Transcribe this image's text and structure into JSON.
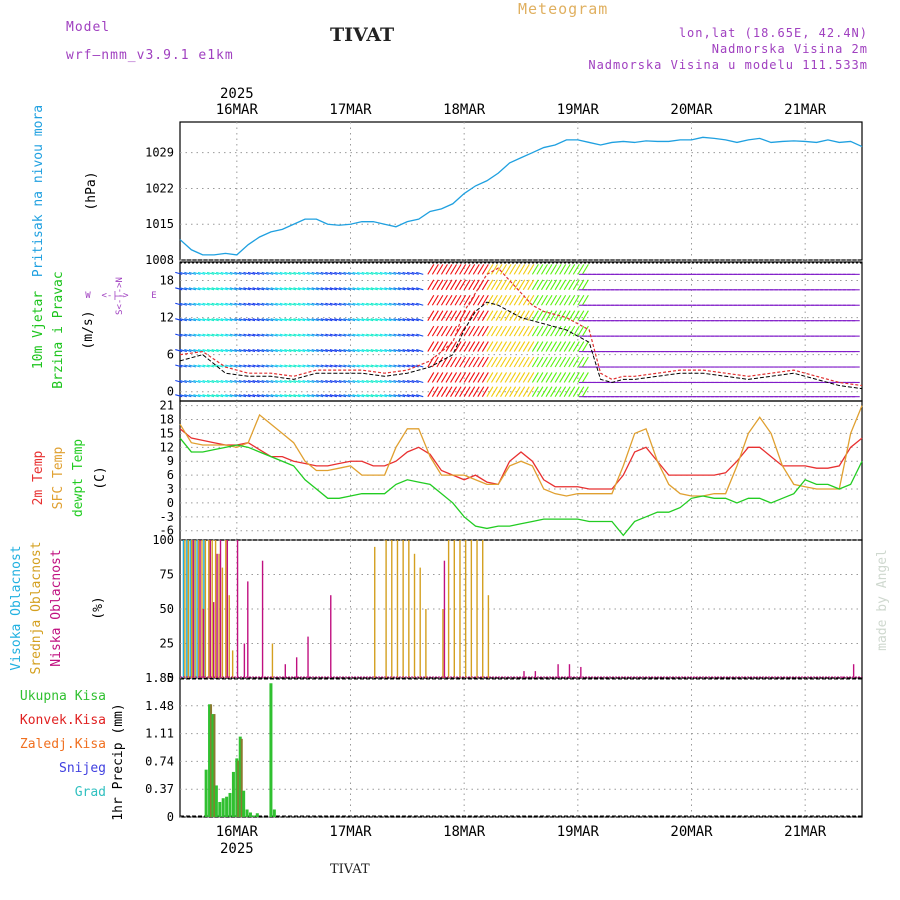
{
  "header": {
    "model_label": "Model",
    "model_name": "wrf—nmm_v3.9.1  e1km",
    "station": "TIVAT",
    "meteogram": "Meteogram",
    "lonlat": "lon,lat (18.65E, 42.4N)",
    "elevation": "Nadmorska Visina 2m",
    "model_elevation": "Nadmorska Visina u modelu 111.533m",
    "footer_station": "TIVAT",
    "credit": "made by Angel"
  },
  "colors": {
    "pressure": "#1fa0e0",
    "wind_label": "#1cc41c",
    "temp2m": "#e83030",
    "sfc_temp": "#e0a030",
    "dewpt": "#22cc22",
    "cloud_high": "#20b0e0",
    "cloud_mid": "#d4a020",
    "cloud_low": "#c01080",
    "precip_total": "#30c030",
    "precip_conv": "#e02020",
    "precip_frz": "#f07020",
    "snow": "#4040e0",
    "grad": "#30c0c0",
    "header_violet": "#a040c0",
    "header_gold": "#e0b060"
  },
  "chart_data": [
    {
      "type": "line",
      "id": "pressure",
      "ylabel": [
        "Pritisak na nivou mora",
        "(hPa)"
      ],
      "x_top_year": "2025",
      "x_ticks": [
        "16MAR",
        "17MAR",
        "18MAR",
        "19MAR",
        "20MAR",
        "21MAR"
      ],
      "yticks": [
        1008,
        1015,
        1022,
        1029
      ],
      "ylim": [
        1008,
        1035
      ],
      "xlim": [
        -0.5,
        5.5
      ],
      "grid": true,
      "x": [
        -0.5,
        -0.4,
        -0.3,
        -0.2,
        -0.1,
        0.0,
        0.1,
        0.2,
        0.3,
        0.4,
        0.5,
        0.6,
        0.7,
        0.8,
        0.9,
        1.0,
        1.1,
        1.2,
        1.3,
        1.4,
        1.5,
        1.6,
        1.7,
        1.8,
        1.9,
        2.0,
        2.1,
        2.2,
        2.3,
        2.4,
        2.5,
        2.6,
        2.7,
        2.8,
        2.9,
        3.0,
        3.1,
        3.2,
        3.3,
        3.4,
        3.5,
        3.6,
        3.7,
        3.8,
        3.9,
        4.0,
        4.1,
        4.2,
        4.3,
        4.4,
        4.5,
        4.6,
        4.7,
        4.8,
        4.9,
        5.0,
        5.1,
        5.2,
        5.3,
        5.4,
        5.5
      ],
      "values": [
        1012,
        1010,
        1009,
        1009,
        1009.3,
        1009,
        1011,
        1012.5,
        1013.5,
        1014,
        1015,
        1016,
        1016,
        1015,
        1014.8,
        1015,
        1015.5,
        1015.5,
        1015,
        1014.5,
        1015.5,
        1016,
        1017.5,
        1018,
        1019,
        1021,
        1022.5,
        1023.5,
        1025,
        1027,
        1028,
        1029,
        1030,
        1030.5,
        1031.5,
        1031.5,
        1031,
        1030.5,
        1031,
        1031.2,
        1031,
        1031.3,
        1031.2,
        1031.2,
        1031.5,
        1031.5,
        1032,
        1031.8,
        1031.5,
        1031,
        1031.5,
        1031.8,
        1031,
        1031.2,
        1031.3,
        1031.2,
        1031,
        1031.5,
        1031,
        1031.2,
        1030.2
      ]
    },
    {
      "type": "line",
      "id": "wind",
      "ylabel": [
        "10m Vjetar",
        "Brzina i Pravac",
        "(m/s)"
      ],
      "compass": [
        "W",
        "<-|->",
        "E",
        "S<-|->N"
      ],
      "yticks": [
        0,
        6,
        12,
        18
      ],
      "ylim": [
        -1.5,
        21
      ],
      "xlim": [
        -0.5,
        5.5
      ],
      "grid": true,
      "x": [
        -0.5,
        -0.3,
        -0.1,
        0.1,
        0.3,
        0.5,
        0.7,
        0.9,
        1.1,
        1.3,
        1.5,
        1.7,
        1.9,
        2.0,
        2.1,
        2.2,
        2.3,
        2.4,
        2.5,
        2.6,
        2.7,
        2.8,
        2.9,
        3.0,
        3.1,
        3.2,
        3.3,
        3.4,
        3.5,
        3.7,
        3.9,
        4.1,
        4.3,
        4.5,
        4.7,
        4.9,
        5.1,
        5.3,
        5.5
      ],
      "series": [
        {
          "name": "speed",
          "values": [
            5,
            6,
            3,
            2.5,
            2.5,
            2,
            3,
            3,
            3,
            2.5,
            3,
            4,
            6,
            10,
            13,
            14.5,
            14,
            13,
            12,
            11.5,
            11,
            10.5,
            10,
            9,
            8,
            2,
            1.5,
            2,
            2,
            2.5,
            3,
            3,
            2.5,
            2,
            2.5,
            3,
            2,
            1,
            0.5
          ]
        },
        {
          "name": "gust",
          "values": [
            6,
            6.5,
            4,
            3,
            3,
            2.5,
            3.5,
            3.5,
            3.5,
            3,
            3.5,
            5,
            8,
            13,
            16,
            19,
            20,
            18,
            16,
            14,
            13,
            12.5,
            12,
            11,
            10,
            3,
            2,
            2.5,
            2.5,
            3,
            3.5,
            3.5,
            3,
            2.5,
            3,
            3.5,
            2.5,
            1.5,
            1
          ]
        }
      ]
    },
    {
      "type": "line",
      "id": "temperature",
      "ylabel": [
        "2m Temp",
        "SFC Temp",
        "dewpt Temp",
        "(C)"
      ],
      "yticks": [
        -6,
        -3,
        0,
        3,
        6,
        9,
        12,
        15,
        18,
        21
      ],
      "ylim": [
        -8,
        22
      ],
      "xlim": [
        -0.5,
        5.5
      ],
      "grid": true,
      "x": [
        -0.5,
        -0.4,
        -0.3,
        -0.2,
        -0.1,
        0.0,
        0.1,
        0.2,
        0.3,
        0.4,
        0.5,
        0.6,
        0.7,
        0.8,
        0.9,
        1.0,
        1.1,
        1.2,
        1.3,
        1.4,
        1.5,
        1.6,
        1.7,
        1.8,
        1.9,
        2.0,
        2.1,
        2.2,
        2.3,
        2.4,
        2.5,
        2.6,
        2.7,
        2.8,
        2.9,
        3.0,
        3.1,
        3.2,
        3.3,
        3.4,
        3.5,
        3.6,
        3.7,
        3.8,
        3.9,
        4.0,
        4.1,
        4.2,
        4.3,
        4.4,
        4.5,
        4.6,
        4.7,
        4.8,
        4.9,
        5.0,
        5.1,
        5.2,
        5.3,
        5.4,
        5.5
      ],
      "series": [
        {
          "name": "2m Temp",
          "values": [
            16,
            14,
            13.5,
            13,
            12.5,
            12.5,
            13,
            11.5,
            10,
            10,
            9,
            8.5,
            8,
            8,
            8.5,
            9,
            9,
            8,
            8,
            9,
            11,
            12,
            10.5,
            7,
            6,
            5,
            6,
            4.5,
            4,
            9,
            11,
            9,
            5,
            3.5,
            3.5,
            3.5,
            3,
            3,
            3,
            6,
            11,
            12,
            9,
            6,
            6,
            6,
            6,
            6,
            6.5,
            9,
            12,
            12,
            10,
            8,
            8,
            8,
            7.5,
            7.5,
            8,
            12,
            14
          ]
        },
        {
          "name": "SFC Temp",
          "values": [
            17,
            13,
            12.5,
            12.5,
            12.5,
            12,
            13,
            19,
            17,
            15,
            13,
            9,
            7,
            7,
            7.5,
            8,
            6,
            6,
            6,
            12,
            16,
            16,
            10,
            6,
            6,
            6,
            5,
            4,
            4,
            8,
            9,
            8,
            3,
            2,
            1.5,
            2,
            2,
            2,
            2,
            8,
            15,
            16,
            9,
            4,
            2,
            1.5,
            1.5,
            2,
            2,
            8,
            15,
            18.5,
            15,
            8,
            4,
            3.5,
            3,
            3,
            3,
            15,
            21
          ]
        },
        {
          "name": "dewpt Temp",
          "values": [
            14,
            11,
            11,
            11.5,
            12,
            12.5,
            12,
            11,
            10,
            9,
            8,
            5,
            3,
            1,
            1,
            1.5,
            2,
            2,
            2,
            4,
            5,
            4.5,
            4,
            2,
            0,
            -3,
            -5,
            -5.5,
            -5,
            -5,
            -4.5,
            -4,
            -3.5,
            -3.5,
            -3.5,
            -3.5,
            -4,
            -4,
            -4,
            -7,
            -4,
            -3,
            -2,
            -2,
            -1,
            1,
            1.5,
            1,
            1,
            0,
            1,
            1,
            0,
            1,
            2,
            5,
            4,
            4,
            3,
            4,
            9
          ]
        }
      ]
    },
    {
      "type": "bar",
      "id": "cloudiness",
      "ylabel": [
        "Visoka Oblacnost",
        "Srednja Oblacnost",
        "Niska Oblacnost",
        "(%)"
      ],
      "yticks": [
        0,
        25,
        50,
        75,
        100
      ],
      "ylim": [
        0,
        100
      ],
      "xlim": [
        -0.5,
        5.5
      ],
      "grid": true,
      "x": [
        -0.47,
        -0.44,
        -0.41,
        -0.38,
        -0.35,
        -0.32,
        -0.29,
        -0.26,
        -0.23,
        -0.2,
        -0.17,
        -0.14,
        -0.11,
        -0.08,
        -0.05,
        -0.02,
        0.01,
        0.04,
        0.07,
        0.1,
        0.2,
        0.3,
        0.4,
        0.5,
        0.6,
        0.7,
        0.8,
        0.9,
        1.0,
        1.1,
        1.2,
        1.3,
        1.35,
        1.4,
        1.45,
        1.5,
        1.55,
        1.6,
        1.65,
        1.7,
        1.8,
        1.85,
        1.9,
        1.95,
        2.0,
        2.05,
        2.1,
        2.15,
        2.2,
        2.5,
        2.6,
        2.8,
        2.9,
        3.0,
        4.0,
        5.3,
        5.4
      ],
      "series": [
        {
          "name": "Visoka Oblacnost",
          "values": [
            100,
            100,
            100,
            100,
            100,
            0,
            100,
            0,
            0,
            0,
            0,
            0,
            0,
            0,
            0,
            0,
            0,
            0,
            0,
            0,
            0,
            0,
            0,
            0,
            0,
            0,
            0,
            0,
            0,
            0,
            0,
            0,
            0,
            0,
            0,
            0,
            0,
            0,
            0,
            0,
            0,
            0,
            0,
            0,
            0,
            0,
            0,
            0,
            0,
            0,
            0,
            0,
            0,
            0,
            0,
            0,
            0
          ]
        },
        {
          "name": "Srednja Oblacnost",
          "values": [
            100,
            100,
            100,
            100,
            100,
            100,
            100,
            100,
            100,
            100,
            90,
            80,
            100,
            60,
            20,
            0,
            0,
            0,
            0,
            0,
            0,
            25,
            0,
            0,
            0,
            0,
            0,
            0,
            0,
            0,
            95,
            100,
            100,
            100,
            100,
            100,
            90,
            80,
            50,
            0,
            50,
            100,
            100,
            100,
            100,
            100,
            100,
            100,
            60,
            0,
            0,
            0,
            0,
            0,
            0,
            0,
            0
          ]
        },
        {
          "name": "Niska Oblacnost",
          "values": [
            0,
            0,
            100,
            0,
            100,
            50,
            0,
            100,
            55,
            90,
            100,
            0,
            100,
            0,
            0,
            100,
            0,
            25,
            70,
            0,
            85,
            0,
            10,
            15,
            30,
            0,
            60,
            0,
            0,
            0,
            0,
            0,
            0,
            0,
            0,
            0,
            0,
            0,
            0,
            0,
            85,
            0,
            0,
            0,
            0,
            0,
            0,
            0,
            0,
            5,
            5,
            10,
            10,
            8,
            1,
            1,
            10
          ]
        }
      ]
    },
    {
      "type": "bar",
      "id": "precipitation",
      "ylabel": [
        "Ukupna Kisa",
        "Konvek.Kisa",
        "Zaledj.Kisa",
        "Snijeg",
        "Grad",
        "1hr Precip (mm)"
      ],
      "yticks": [
        0,
        0.37,
        0.74,
        1.11,
        1.48,
        1.85
      ],
      "ylim": [
        0,
        1.85
      ],
      "xlim": [
        -0.5,
        5.5
      ],
      "grid": true,
      "x_bottom_year": "2025",
      "x": [
        -0.27,
        -0.24,
        -0.21,
        -0.18,
        -0.15,
        -0.12,
        -0.09,
        -0.06,
        -0.03,
        0.0,
        0.03,
        0.06,
        0.09,
        0.12,
        0.15,
        0.18,
        0.21,
        0.3,
        0.33
      ],
      "series": [
        {
          "name": "Ukupna Kisa",
          "values": [
            0.63,
            1.5,
            1.37,
            0.42,
            0.2,
            0.25,
            0.27,
            0.32,
            0.6,
            0.78,
            1.07,
            0.35,
            0.1,
            0.06,
            0.02,
            0.05,
            0,
            1.78,
            0.1
          ]
        },
        {
          "name": "Konvek.Kisa",
          "values": [
            0,
            1.5,
            1.37,
            0,
            0,
            0,
            0,
            0,
            0,
            0.75,
            1.04,
            0,
            0,
            0,
            0,
            0,
            0,
            0,
            0
          ]
        }
      ]
    }
  ]
}
